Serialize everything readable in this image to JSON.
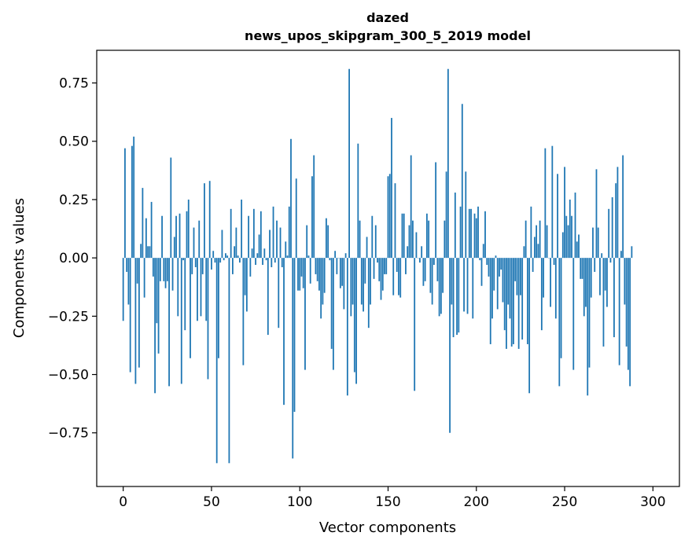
{
  "chart_data": {
    "type": "bar",
    "title": "dazed",
    "subtitle": "news_upos_skipgram_300_5_2019 model",
    "xlabel": "Vector components",
    "ylabel": "Components values",
    "xlim": [
      -15,
      315
    ],
    "ylim": [
      -0.98,
      0.89
    ],
    "xticks": [
      0,
      50,
      100,
      150,
      200,
      250,
      300
    ],
    "yticks": [
      -0.75,
      -0.5,
      -0.25,
      0.0,
      0.25,
      0.5,
      0.75
    ],
    "ytick_labels": [
      "−0.75",
      "−0.50",
      "−0.25",
      "0.00",
      "0.25",
      "0.50",
      "0.75"
    ],
    "grid": false,
    "bar_color": "#1f77b4",
    "x": "0..299",
    "values": [
      -0.27,
      0.47,
      -0.06,
      -0.2,
      -0.49,
      0.48,
      0.52,
      -0.54,
      -0.11,
      -0.47,
      0.06,
      0.3,
      -0.17,
      0.17,
      0.05,
      0.05,
      0.24,
      -0.08,
      -0.58,
      -0.28,
      -0.41,
      -0.1,
      0.18,
      -0.1,
      -0.13,
      -0.1,
      -0.55,
      0.43,
      -0.14,
      0.09,
      0.18,
      -0.25,
      0.19,
      -0.54,
      -0.01,
      -0.31,
      0.2,
      0.25,
      -0.43,
      -0.07,
      0.13,
      -0.04,
      -0.27,
      0.16,
      -0.25,
      -0.07,
      0.32,
      -0.27,
      -0.52,
      0.33,
      -0.05,
      0.03,
      -0.02,
      -0.88,
      -0.43,
      -0.02,
      0.12,
      -0.01,
      0.02,
      0.01,
      -0.88,
      0.21,
      -0.07,
      0.05,
      0.13,
      0.01,
      -0.02,
      0.25,
      -0.46,
      -0.16,
      -0.23,
      0.18,
      -0.08,
      0.04,
      0.21,
      -0.03,
      0.02,
      0.1,
      0.2,
      -0.03,
      0.04,
      -0.01,
      -0.33,
      0.12,
      -0.04,
      0.22,
      -0.02,
      0.16,
      -0.3,
      0.13,
      -0.04,
      -0.63,
      0.07,
      0.01,
      0.22,
      0.51,
      -0.86,
      -0.66,
      0.34,
      -0.14,
      -0.14,
      -0.08,
      -0.13,
      -0.48,
      0.14,
      0.01,
      -0.11,
      0.35,
      0.44,
      -0.07,
      -0.1,
      -0.14,
      -0.26,
      -0.2,
      -0.15,
      0.17,
      0.14,
      -0.01,
      -0.39,
      -0.48,
      0.03,
      -0.07,
      0.0,
      -0.13,
      -0.12,
      -0.22,
      0.02,
      -0.59,
      0.81,
      -0.25,
      -0.2,
      -0.49,
      -0.54,
      0.49,
      0.16,
      -0.2,
      -0.23,
      -0.11,
      0.09,
      -0.3,
      -0.2,
      0.18,
      -0.09,
      0.14,
      -0.02,
      -0.1,
      -0.18,
      -0.14,
      -0.07,
      -0.07,
      0.35,
      0.36,
      0.6,
      -0.16,
      0.32,
      -0.06,
      -0.16,
      -0.17,
      0.19,
      0.19,
      -0.07,
      0.05,
      0.14,
      0.44,
      0.16,
      -0.57,
      0.11,
      0.0,
      -0.02,
      0.05,
      -0.12,
      -0.1,
      0.19,
      0.16,
      -0.15,
      -0.2,
      -0.03,
      0.41,
      -0.1,
      -0.25,
      -0.24,
      -0.15,
      0.16,
      0.37,
      0.81,
      -0.75,
      -0.2,
      -0.34,
      0.28,
      -0.33,
      -0.32,
      0.22,
      0.66,
      -0.23,
      0.37,
      -0.24,
      0.21,
      0.21,
      -0.26,
      0.19,
      0.17,
      0.22,
      -0.01,
      -0.12,
      0.06,
      0.2,
      -0.03,
      -0.08,
      -0.37,
      -0.26,
      -0.14,
      0.01,
      -0.22,
      -0.08,
      -0.05,
      -0.19,
      -0.31,
      -0.39,
      -0.2,
      -0.26,
      -0.38,
      -0.37,
      -0.1,
      -0.16,
      -0.39,
      -0.16,
      -0.35,
      0.05,
      0.16,
      -0.37,
      -0.58,
      0.22,
      -0.06,
      0.09,
      0.14,
      0.06,
      0.16,
      -0.31,
      -0.17,
      0.47,
      0.14,
      0.0,
      -0.21,
      0.48,
      -0.03,
      -0.26,
      0.36,
      -0.55,
      -0.43,
      0.11,
      0.39,
      0.18,
      0.14,
      0.25,
      0.18,
      -0.48,
      0.28,
      0.07,
      0.1,
      -0.09,
      -0.09,
      -0.25,
      -0.21,
      -0.59,
      -0.47,
      -0.17,
      0.13,
      -0.06,
      0.38,
      0.13,
      -0.16,
      0.02,
      -0.38,
      -0.14,
      -0.21,
      0.21,
      -0.02,
      0.26,
      -0.34,
      0.32,
      0.39,
      -0.46,
      0.03,
      0.44,
      -0.2,
      -0.38,
      -0.48,
      -0.55,
      0.05
    ]
  }
}
